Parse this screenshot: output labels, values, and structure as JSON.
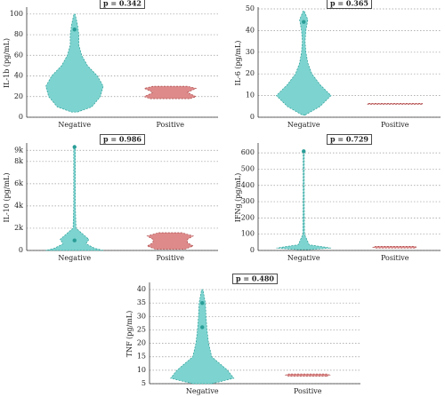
{
  "chart_data": [
    {
      "type": "violin",
      "y_label": "IL-1b (pg/mL)",
      "annotation": "p = 0.342",
      "categories": [
        "Negative",
        "Positive"
      ],
      "ylim": [
        0,
        105
      ],
      "yticks": [
        0,
        20,
        40,
        60,
        80,
        100
      ],
      "grid": true,
      "violins": [
        {
          "color": "#7dd3cf",
          "y": [
            5,
            10,
            20,
            30,
            40,
            50,
            60,
            70,
            80,
            90,
            100
          ],
          "width": [
            0.1,
            0.6,
            0.9,
            1,
            0.8,
            0.45,
            0.25,
            0.15,
            0.15,
            0.1,
            0.02
          ],
          "points": [
            85
          ]
        },
        {
          "color": "#de8a8a",
          "y": [
            18,
            20,
            22,
            24,
            26,
            28,
            30
          ],
          "width": [
            0.7,
            0.9,
            0.75,
            0.6,
            0.75,
            0.9,
            0.6
          ],
          "points": []
        }
      ]
    },
    {
      "type": "violin",
      "y_label": "IL-6 (pg/mL)",
      "annotation": "p = 0.365",
      "categories": [
        "Negative",
        "Positive"
      ],
      "ylim": [
        0,
        50
      ],
      "yticks": [
        0,
        10,
        20,
        30,
        40,
        50
      ],
      "grid": true,
      "violins": [
        {
          "color": "#7dd3cf",
          "y": [
            1,
            5,
            10,
            15,
            20,
            25,
            30,
            35,
            40,
            45,
            49
          ],
          "width": [
            0.05,
            0.6,
            1,
            0.6,
            0.3,
            0.15,
            0.08,
            0.05,
            0.08,
            0.15,
            0.02
          ],
          "points": [
            44
          ]
        },
        {
          "color": "#de8a8a",
          "y": [
            6,
            6.4
          ],
          "width": [
            1,
            1
          ],
          "points": []
        }
      ]
    },
    {
      "type": "violin",
      "y_label": "IL-10 (pg/mL)",
      "annotation": "p = 0.986",
      "categories": [
        "Negative",
        "Positive"
      ],
      "ylim": [
        0,
        9500
      ],
      "yticks": [
        0,
        {
          "value": 2000,
          "label": "2k"
        },
        {
          "value": 4000,
          "label": "4k"
        },
        {
          "value": 6000,
          "label": "6k"
        },
        {
          "value": 8000,
          "label": "8k"
        },
        {
          "value": 9000,
          "label": "9k"
        }
      ],
      "grid": true,
      "violins": [
        {
          "color": "#7dd3cf",
          "y": [
            0,
            200,
            600,
            1000,
            2000,
            4000,
            6000,
            8000,
            9300
          ],
          "width": [
            1,
            0.7,
            0.4,
            0.5,
            0.05,
            0.03,
            0.03,
            0.03,
            0.03
          ],
          "points": [
            900,
            9300
          ]
        },
        {
          "color": "#de8a8a",
          "y": [
            100,
            400,
            700,
            1000,
            1300,
            1600
          ],
          "width": [
            0.5,
            0.8,
            0.6,
            0.6,
            0.8,
            0.4
          ],
          "points": []
        }
      ]
    },
    {
      "type": "violin",
      "y_label": "IFNg (pg/mL)",
      "annotation": "p = 0.729",
      "categories": [
        "Negative",
        "Positive"
      ],
      "ylim": [
        0,
        650
      ],
      "yticks": [
        0,
        100,
        200,
        300,
        400,
        500,
        600
      ],
      "grid": true,
      "violins": [
        {
          "color": "#7dd3cf",
          "y": [
            5,
            15,
            25,
            35,
            100,
            300,
            500,
            610
          ],
          "width": [
            0.2,
            1,
            0.6,
            0.2,
            0.03,
            0.02,
            0.02,
            0.02
          ],
          "points": [
            610
          ]
        },
        {
          "color": "#de8a8a",
          "y": [
            15,
            20,
            25
          ],
          "width": [
            0.7,
            0.8,
            0.7
          ],
          "points": []
        }
      ]
    },
    {
      "type": "violin",
      "y_label": "TNF (pg/mL)",
      "annotation": "p = 0.480",
      "categories": [
        "Negative",
        "Positive"
      ],
      "ylim": [
        5,
        42
      ],
      "yticks": [
        5,
        10,
        15,
        20,
        25,
        30,
        35,
        40
      ],
      "grid": true,
      "violins": [
        {
          "color": "#7dd3cf",
          "y": [
            5,
            7,
            10,
            12,
            15,
            20,
            25,
            30,
            35,
            40
          ],
          "width": [
            0.3,
            1,
            0.8,
            0.6,
            0.3,
            0.2,
            0.15,
            0.12,
            0.1,
            0.02
          ],
          "points": [
            26,
            35
          ]
        },
        {
          "color": "#de8a8a",
          "y": [
            7.8,
            8.2,
            8.6
          ],
          "width": [
            0.6,
            0.7,
            0.6
          ],
          "points": []
        }
      ]
    }
  ]
}
